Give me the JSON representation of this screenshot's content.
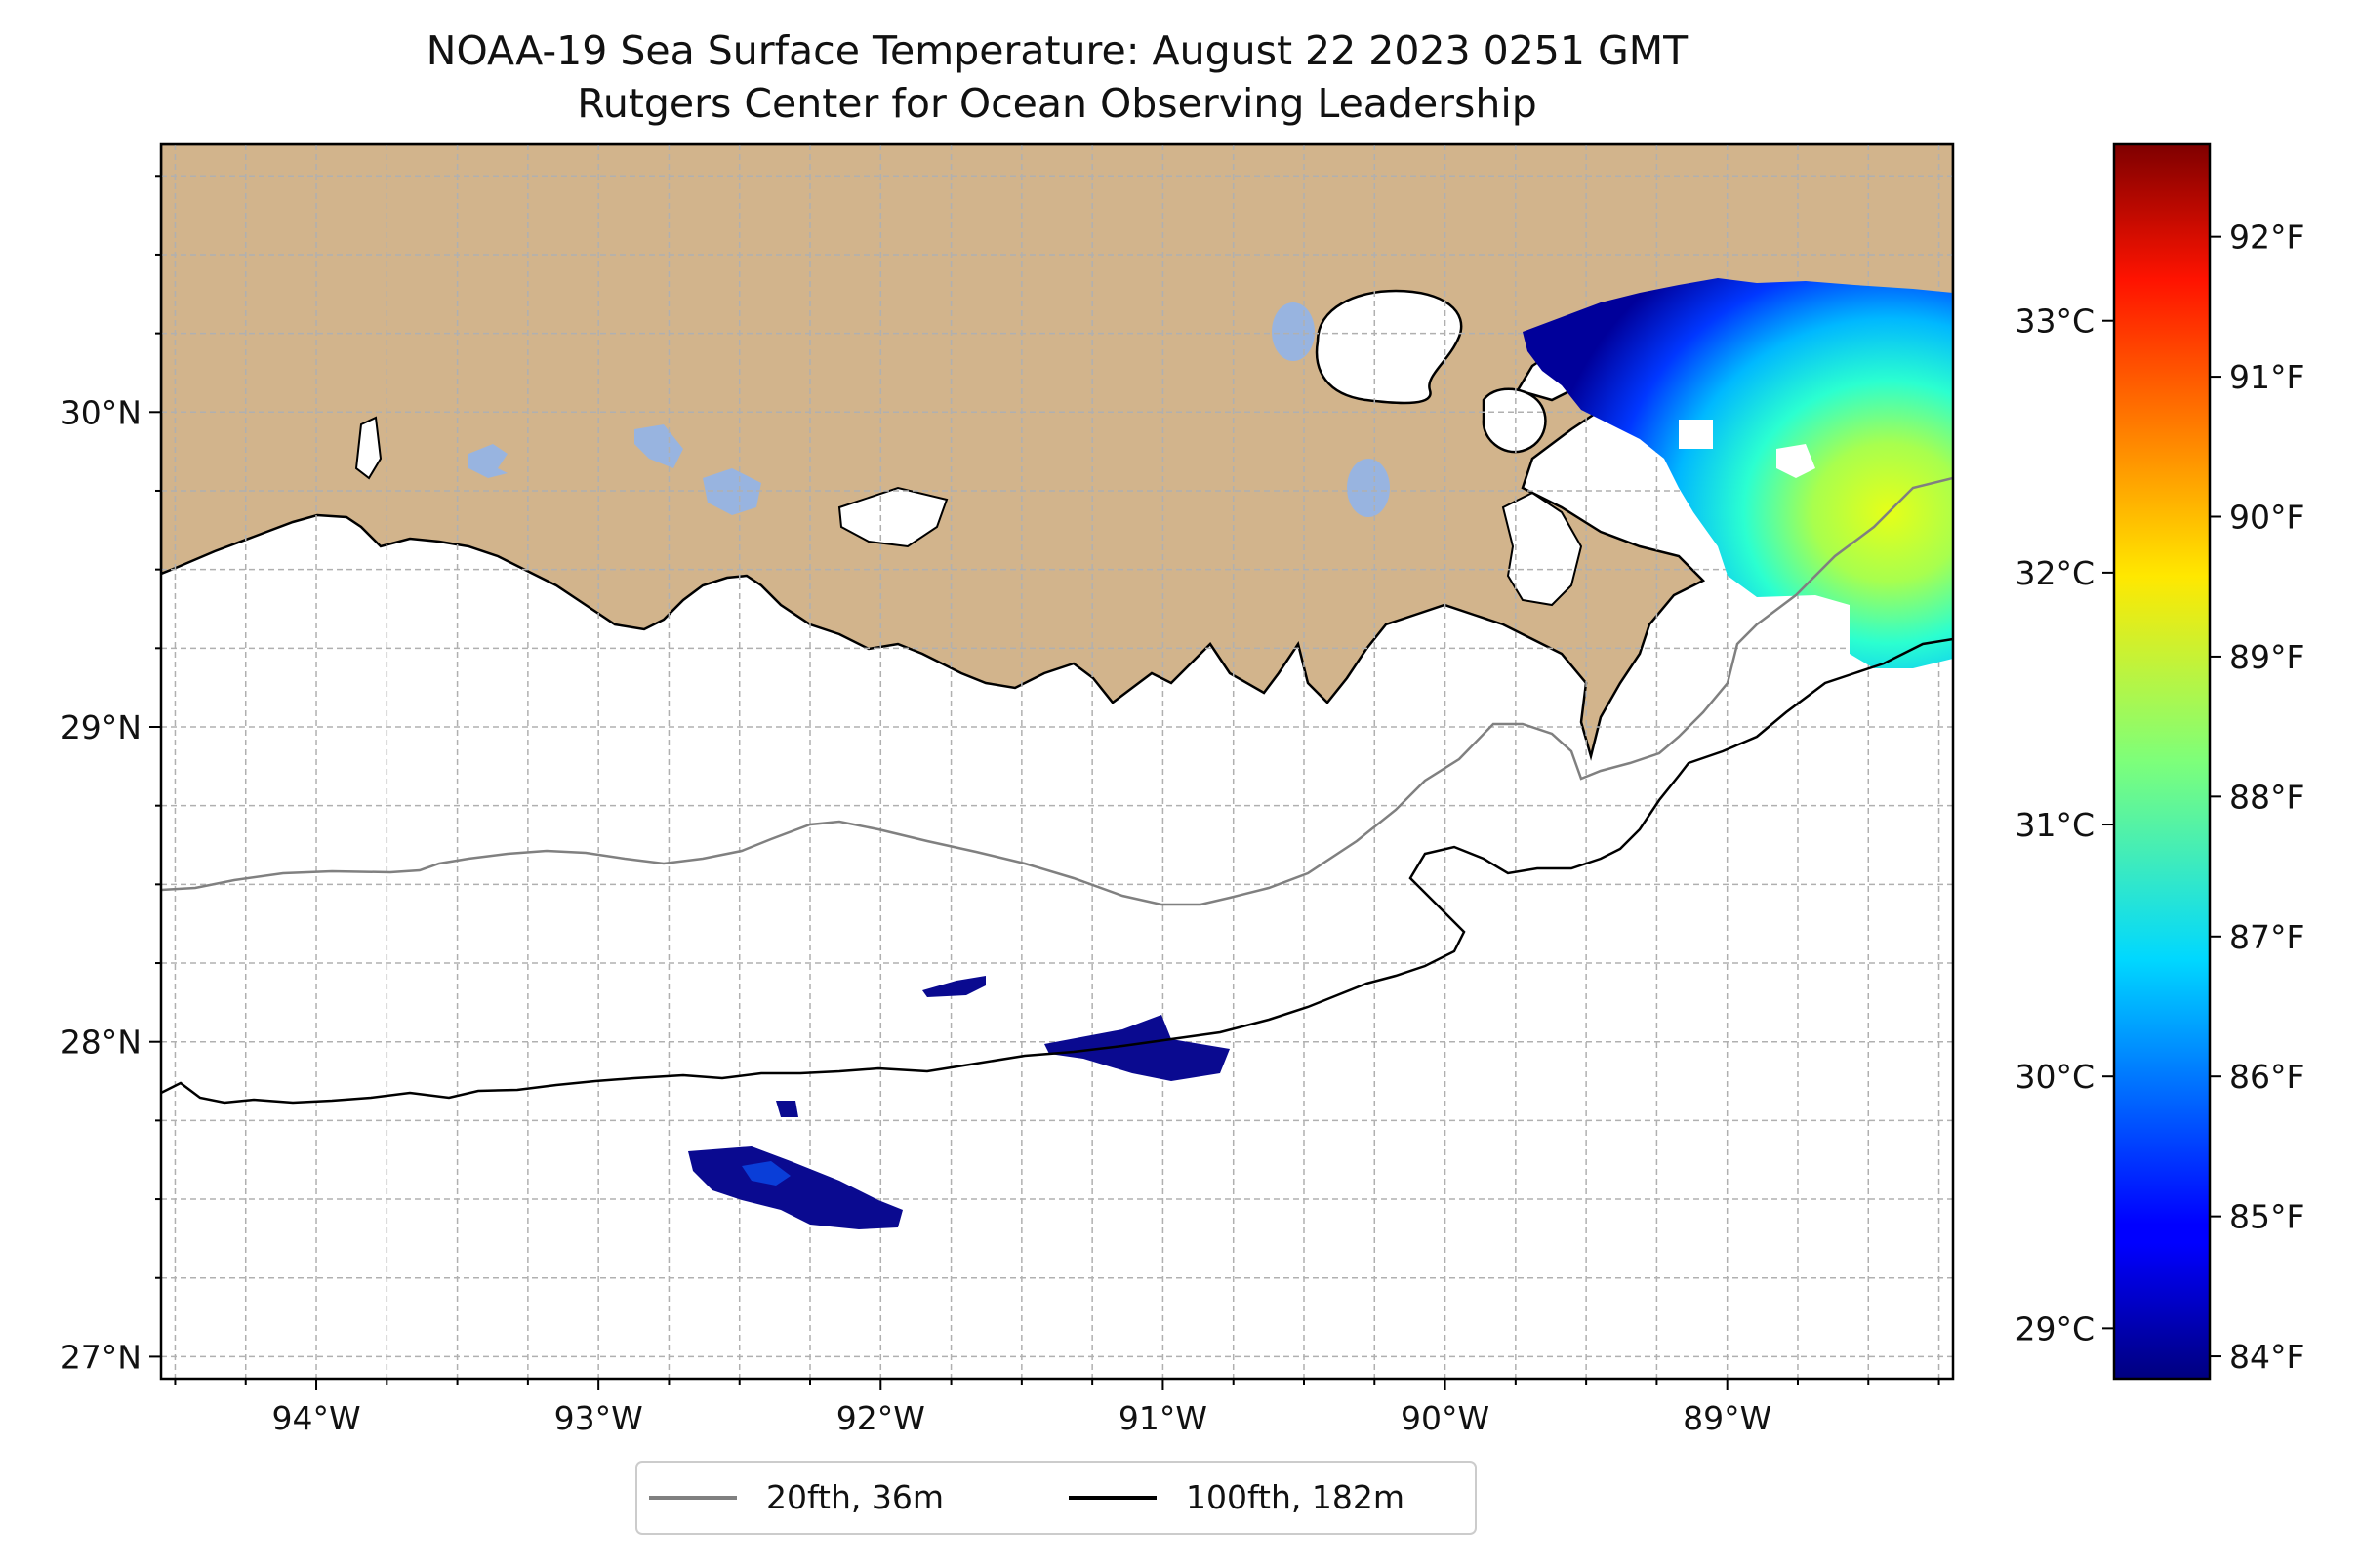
{
  "figure": {
    "title_line1": "NOAA-19 Sea Surface Temperature: August 22 2023 0251 GMT",
    "title_line2": "Rutgers Center for Ocean Observing Leadership"
  },
  "map": {
    "region": "Louisiana shelf, northern Gulf of Mexico",
    "extent": {
      "lon_min": -94.55,
      "lon_max": -88.2,
      "lat_min": 26.93,
      "lat_max": 30.85
    },
    "land_color": "#d2b48c",
    "lake_color": "#98b4e0",
    "grid": "dashed, minor every 0.25 degrees",
    "lat_ticks": [
      {
        "value": 27,
        "label": "27°N"
      },
      {
        "value": 28,
        "label": "28°N"
      },
      {
        "value": 29,
        "label": "29°N"
      },
      {
        "value": 30,
        "label": "30°N"
      }
    ],
    "lon_ticks": [
      {
        "value": -94,
        "label": "94°W"
      },
      {
        "value": -93,
        "label": "93°W"
      },
      {
        "value": -92,
        "label": "92°W"
      },
      {
        "value": -91,
        "label": "91°W"
      },
      {
        "value": -90,
        "label": "90°W"
      },
      {
        "value": -89,
        "label": "89°W"
      }
    ]
  },
  "legend": {
    "items": [
      {
        "label": "20fth, 36m",
        "color": "#808080"
      },
      {
        "label": "100fth, 182m",
        "color": "#000000"
      }
    ]
  },
  "colorbar": {
    "colormap": "jet",
    "range_c": [
      28.8,
      33.7
    ],
    "celsius_ticks": [
      {
        "value": 29,
        "label": "29°C"
      },
      {
        "value": 30,
        "label": "30°C"
      },
      {
        "value": 31,
        "label": "31°C"
      },
      {
        "value": 32,
        "label": "32°C"
      },
      {
        "value": 33,
        "label": "33°C"
      }
    ],
    "fahrenheit_ticks": [
      {
        "value": 84,
        "label": "84°F"
      },
      {
        "value": 85,
        "label": "85°F"
      },
      {
        "value": 86,
        "label": "86°F"
      },
      {
        "value": 87,
        "label": "87°F"
      },
      {
        "value": 88,
        "label": "88°F"
      },
      {
        "value": 89,
        "label": "89°F"
      },
      {
        "value": 90,
        "label": "90°F"
      },
      {
        "value": 91,
        "label": "91°F"
      },
      {
        "value": 92,
        "label": "92°F"
      }
    ]
  }
}
